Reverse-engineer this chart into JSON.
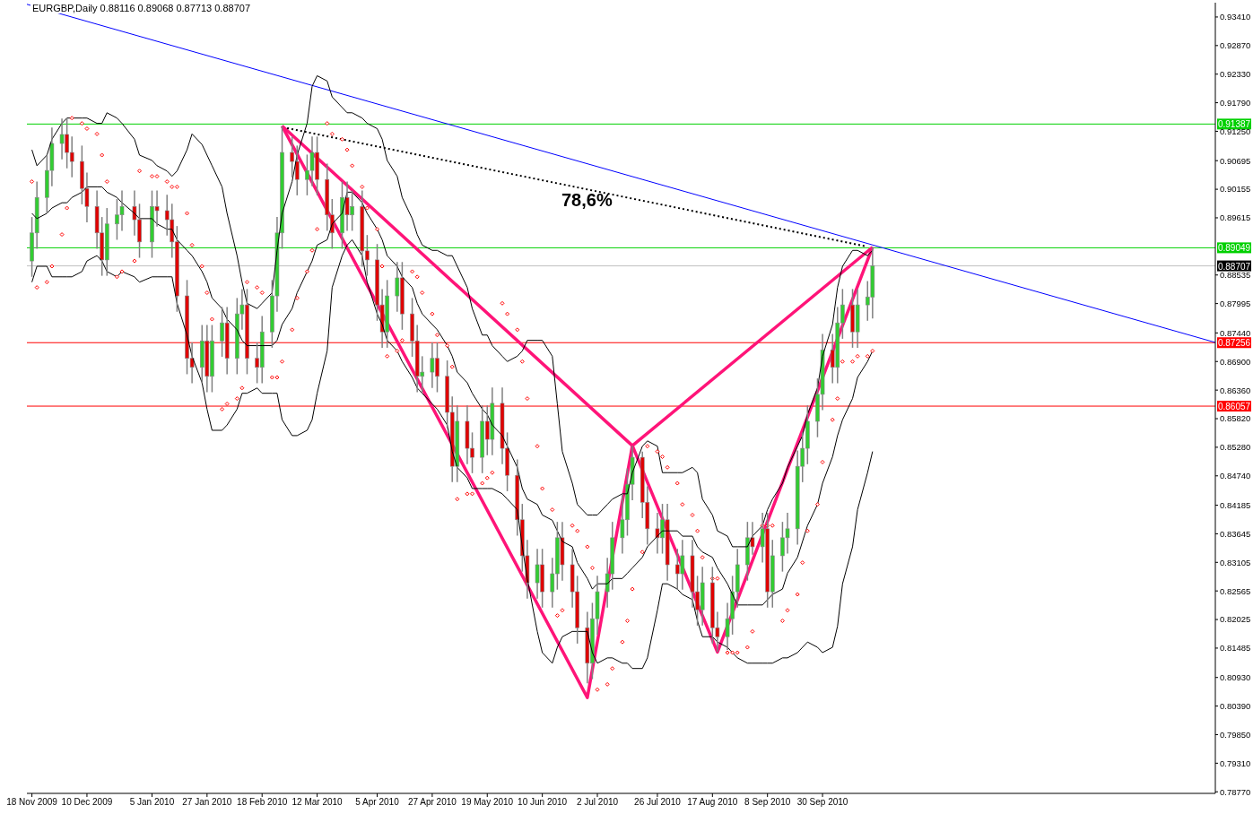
{
  "chart_data": {
    "type": "candlestick",
    "title": "EURGBP,Daily 0.88116 0.89068 0.87713 0.88707",
    "x": [
      "2009-11-18",
      "2009-11-20",
      "2009-11-24",
      "2009-11-26",
      "2009-11-30",
      "2009-12-02",
      "2009-12-04",
      "2009-12-08",
      "2009-12-10",
      "2009-12-14",
      "2009-12-16",
      "2009-12-18",
      "2009-12-22",
      "2009-12-24",
      "2009-12-29",
      "2009-12-31",
      "2010-01-05",
      "2010-01-07",
      "2010-01-11",
      "2010-01-13",
      "2010-01-15",
      "2010-01-19",
      "2010-01-21",
      "2010-01-25",
      "2010-01-27",
      "2010-01-29",
      "2010-02-02",
      "2010-02-04",
      "2010-02-08",
      "2010-02-10",
      "2010-02-12",
      "2010-02-16",
      "2010-02-18",
      "2010-02-22",
      "2010-02-24",
      "2010-02-26",
      "2010-03-02",
      "2010-03-04",
      "2010-03-08",
      "2010-03-10",
      "2010-03-12",
      "2010-03-16",
      "2010-03-18",
      "2010-03-22",
      "2010-03-24",
      "2010-03-26",
      "2010-03-30",
      "2010-04-01",
      "2010-04-05",
      "2010-04-07",
      "2010-04-09",
      "2010-04-13",
      "2010-04-15",
      "2010-04-19",
      "2010-04-21",
      "2010-04-23",
      "2010-04-27",
      "2010-04-29",
      "2010-05-03",
      "2010-05-05",
      "2010-05-07",
      "2010-05-11",
      "2010-05-13",
      "2010-05-17",
      "2010-05-19",
      "2010-05-21",
      "2010-05-25",
      "2010-05-27",
      "2010-05-31",
      "2010-06-02",
      "2010-06-04",
      "2010-06-08",
      "2010-06-10",
      "2010-06-14",
      "2010-06-16",
      "2010-06-18",
      "2010-06-22",
      "2010-06-24",
      "2010-06-28",
      "2010-06-30",
      "2010-07-02",
      "2010-07-06",
      "2010-07-08",
      "2010-07-12",
      "2010-07-14",
      "2010-07-16",
      "2010-07-20",
      "2010-07-22",
      "2010-07-26",
      "2010-07-28",
      "2010-07-30",
      "2010-08-03",
      "2010-08-05",
      "2010-08-09",
      "2010-08-11",
      "2010-08-13",
      "2010-08-17",
      "2010-08-19",
      "2010-08-23",
      "2010-08-25",
      "2010-08-27",
      "2010-08-31",
      "2010-09-02",
      "2010-09-06",
      "2010-09-08",
      "2010-09-10",
      "2010-09-14",
      "2010-09-16",
      "2010-09-20",
      "2010-09-22",
      "2010-09-24",
      "2010-09-28",
      "2010-09-30",
      "2010-10-04",
      "2010-10-06",
      "2010-10-08",
      "2010-10-12",
      "2010-10-14",
      "2010-10-18",
      "2010-10-20"
    ],
    "ohlc": [
      [
        0.888,
        0.8963,
        0.885,
        0.8933
      ],
      [
        0.8933,
        0.903,
        0.8903,
        0.9
      ],
      [
        0.9,
        0.9081,
        0.897,
        0.9051
      ],
      [
        0.9051,
        0.9132,
        0.9021,
        0.9102
      ],
      [
        0.9102,
        0.9149,
        0.9072,
        0.9119
      ],
      [
        0.9119,
        0.9149,
        0.9055,
        0.9085
      ],
      [
        0.9085,
        0.9115,
        0.9038,
        0.9068
      ],
      [
        0.9068,
        0.9098,
        0.8987,
        0.9017
      ],
      [
        0.9017,
        0.9047,
        0.8953,
        0.8983
      ],
      [
        0.8983,
        0.9013,
        0.8903,
        0.8933
      ],
      [
        0.8933,
        0.8963,
        0.8852,
        0.8882
      ],
      [
        0.8882,
        0.898,
        0.8852,
        0.895
      ],
      [
        0.895,
        0.8997,
        0.892,
        0.8967
      ],
      [
        0.8967,
        0.9013,
        0.8937,
        0.8983
      ],
      [
        0.8983,
        0.9013,
        0.8928,
        0.8958
      ],
      [
        0.8958,
        0.8988,
        0.8886,
        0.8916
      ],
      [
        0.8916,
        0.9013,
        0.8886,
        0.8983
      ],
      [
        0.8983,
        0.9013,
        0.8945,
        0.8975
      ],
      [
        0.8975,
        0.9005,
        0.8928,
        0.8958
      ],
      [
        0.8958,
        0.8988,
        0.8886,
        0.8916
      ],
      [
        0.8916,
        0.8946,
        0.8784,
        0.8814
      ],
      [
        0.8814,
        0.8844,
        0.8666,
        0.8696
      ],
      [
        0.8696,
        0.8726,
        0.8649,
        0.8679
      ],
      [
        0.8679,
        0.8759,
        0.8649,
        0.8729
      ],
      [
        0.8729,
        0.8759,
        0.8632,
        0.8662
      ],
      [
        0.8662,
        0.8759,
        0.8632,
        0.8729
      ],
      [
        0.8729,
        0.8793,
        0.8699,
        0.8763
      ],
      [
        0.8763,
        0.8793,
        0.8666,
        0.8696
      ],
      [
        0.8696,
        0.881,
        0.8666,
        0.878
      ],
      [
        0.878,
        0.8827,
        0.875,
        0.8797
      ],
      [
        0.8797,
        0.8827,
        0.8666,
        0.8696
      ],
      [
        0.8696,
        0.8726,
        0.8649,
        0.8679
      ],
      [
        0.8679,
        0.8776,
        0.8649,
        0.8746
      ],
      [
        0.8746,
        0.8844,
        0.8716,
        0.8814
      ],
      [
        0.8814,
        0.8963,
        0.8784,
        0.8933
      ],
      [
        0.8933,
        0.9135,
        0.8903,
        0.9085
      ],
      [
        0.9085,
        0.9115,
        0.9038,
        0.9068
      ],
      [
        0.9068,
        0.9098,
        0.9004,
        0.9034
      ],
      [
        0.9034,
        0.9081,
        0.9004,
        0.9051
      ],
      [
        0.9051,
        0.9115,
        0.9021,
        0.9085
      ],
      [
        0.9085,
        0.9115,
        0.9004,
        0.9034
      ],
      [
        0.9034,
        0.9064,
        0.8937,
        0.8967
      ],
      [
        0.8967,
        0.8997,
        0.8903,
        0.8933
      ],
      [
        0.8933,
        0.903,
        0.8903,
        0.9
      ],
      [
        0.9,
        0.903,
        0.8937,
        0.8967
      ],
      [
        0.8967,
        0.9013,
        0.8937,
        0.8983
      ],
      [
        0.8983,
        0.9013,
        0.8869,
        0.8899
      ],
      [
        0.8899,
        0.8929,
        0.8852,
        0.8882
      ],
      [
        0.8882,
        0.8912,
        0.8767,
        0.8797
      ],
      [
        0.8797,
        0.8827,
        0.8716,
        0.8746
      ],
      [
        0.8746,
        0.8844,
        0.8716,
        0.8814
      ],
      [
        0.8814,
        0.8878,
        0.8784,
        0.8848
      ],
      [
        0.8848,
        0.8878,
        0.875,
        0.878
      ],
      [
        0.878,
        0.881,
        0.8699,
        0.8729
      ],
      [
        0.8729,
        0.8759,
        0.8632,
        0.8662
      ],
      [
        0.8662,
        0.87,
        0.8632,
        0.867
      ],
      [
        0.867,
        0.8726,
        0.864,
        0.8696
      ],
      [
        0.8696,
        0.8726,
        0.8632,
        0.8662
      ],
      [
        0.8662,
        0.8692,
        0.8564,
        0.8594
      ],
      [
        0.8594,
        0.8624,
        0.8462,
        0.8492
      ],
      [
        0.8492,
        0.8607,
        0.8462,
        0.8577
      ],
      [
        0.8577,
        0.8607,
        0.8496,
        0.8526
      ],
      [
        0.8526,
        0.8556,
        0.8479,
        0.8509
      ],
      [
        0.8509,
        0.8607,
        0.8479,
        0.8577
      ],
      [
        0.8577,
        0.8607,
        0.8513,
        0.8543
      ],
      [
        0.8543,
        0.8641,
        0.8513,
        0.8611
      ],
      [
        0.8611,
        0.8641,
        0.8496,
        0.8526
      ],
      [
        0.8526,
        0.8556,
        0.8445,
        0.8475
      ],
      [
        0.8475,
        0.8505,
        0.8361,
        0.8391
      ],
      [
        0.8391,
        0.8421,
        0.8293,
        0.8323
      ],
      [
        0.8323,
        0.8353,
        0.8242,
        0.8272
      ],
      [
        0.8272,
        0.8336,
        0.8242,
        0.8306
      ],
      [
        0.8306,
        0.8336,
        0.8225,
        0.8255
      ],
      [
        0.8255,
        0.8319,
        0.8225,
        0.8289
      ],
      [
        0.8289,
        0.8387,
        0.8259,
        0.8357
      ],
      [
        0.8357,
        0.8387,
        0.8276,
        0.8306
      ],
      [
        0.8306,
        0.8336,
        0.8225,
        0.8255
      ],
      [
        0.8255,
        0.8285,
        0.8157,
        0.8187
      ],
      [
        0.8187,
        0.8217,
        0.8082,
        0.812
      ],
      [
        0.812,
        0.8234,
        0.809,
        0.8204
      ],
      [
        0.8204,
        0.8285,
        0.8174,
        0.8255
      ],
      [
        0.8255,
        0.8319,
        0.8225,
        0.8289
      ],
      [
        0.8289,
        0.8387,
        0.8259,
        0.8357
      ],
      [
        0.8357,
        0.844,
        0.8327,
        0.8391
      ],
      [
        0.8391,
        0.8488,
        0.8361,
        0.8458
      ],
      [
        0.8458,
        0.8531,
        0.8428,
        0.8509
      ],
      [
        0.8509,
        0.852,
        0.8394,
        0.8424
      ],
      [
        0.8424,
        0.8454,
        0.8344,
        0.8374
      ],
      [
        0.8374,
        0.8404,
        0.8327,
        0.8357
      ],
      [
        0.8357,
        0.8421,
        0.8327,
        0.8391
      ],
      [
        0.8391,
        0.8421,
        0.8276,
        0.8306
      ],
      [
        0.8306,
        0.8336,
        0.8259,
        0.8289
      ],
      [
        0.8289,
        0.8353,
        0.8259,
        0.8323
      ],
      [
        0.8323,
        0.8353,
        0.8225,
        0.8255
      ],
      [
        0.8255,
        0.8285,
        0.8191,
        0.8221
      ],
      [
        0.8221,
        0.8302,
        0.8191,
        0.8272
      ],
      [
        0.8272,
        0.8302,
        0.8157,
        0.8187
      ],
      [
        0.8187,
        0.8217,
        0.8141,
        0.817
      ],
      [
        0.817,
        0.8234,
        0.8145,
        0.8204
      ],
      [
        0.8204,
        0.8285,
        0.8174,
        0.8255
      ],
      [
        0.8255,
        0.8336,
        0.8225,
        0.8306
      ],
      [
        0.8306,
        0.8387,
        0.8276,
        0.8357
      ],
      [
        0.8357,
        0.8387,
        0.8325,
        0.834
      ],
      [
        0.834,
        0.8404,
        0.831,
        0.8374
      ],
      [
        0.8374,
        0.8404,
        0.8225,
        0.8255
      ],
      [
        0.8255,
        0.8353,
        0.8225,
        0.8323
      ],
      [
        0.8323,
        0.8387,
        0.8293,
        0.8357
      ],
      [
        0.8357,
        0.8404,
        0.8327,
        0.8374
      ],
      [
        0.8374,
        0.8522,
        0.8344,
        0.8492
      ],
      [
        0.8492,
        0.8556,
        0.8462,
        0.8526
      ],
      [
        0.8526,
        0.8607,
        0.8496,
        0.8577
      ],
      [
        0.8577,
        0.8658,
        0.8547,
        0.8628
      ],
      [
        0.8628,
        0.8742,
        0.8598,
        0.8712
      ],
      [
        0.8712,
        0.8742,
        0.8649,
        0.8679
      ],
      [
        0.8679,
        0.8793,
        0.8649,
        0.8763
      ],
      [
        0.8763,
        0.8827,
        0.8733,
        0.8797
      ],
      [
        0.8797,
        0.8827,
        0.8716,
        0.8746
      ],
      [
        0.8746,
        0.8827,
        0.8716,
        0.8797
      ],
      [
        0.8797,
        0.8842,
        0.8767,
        0.8812
      ],
      [
        0.88116,
        0.89068,
        0.87713,
        0.88707
      ]
    ],
    "series": [
      {
        "type": "line",
        "color": "#000000",
        "values": [
          0.909,
          0.906,
          0.908,
          0.911,
          0.914,
          0.915,
          0.915,
          0.915,
          0.915,
          0.914,
          0.914,
          0.916,
          0.915,
          0.914,
          0.911,
          0.908,
          0.907,
          0.906,
          0.905,
          0.904,
          0.905,
          0.909,
          0.912,
          0.91,
          0.908,
          0.906,
          0.902,
          0.897,
          0.889,
          0.884,
          0.88,
          0.879,
          0.88,
          0.882,
          0.89,
          0.897,
          0.903,
          0.908,
          0.914,
          0.921,
          0.923,
          0.922,
          0.919,
          0.917,
          0.916,
          0.916,
          0.915,
          0.914,
          0.913,
          0.911,
          0.907,
          0.904,
          0.9,
          0.896,
          0.893,
          0.891,
          0.89,
          0.89,
          0.889,
          0.889,
          0.887,
          0.883,
          0.879,
          0.874,
          0.874,
          0.872,
          0.87,
          0.869,
          0.87,
          0.871,
          0.873,
          0.873,
          0.873,
          0.87,
          0.861,
          0.852,
          0.846,
          0.842,
          0.84,
          0.84,
          0.84,
          0.842,
          0.843,
          0.844,
          0.844,
          0.848,
          0.853,
          0.854,
          0.853,
          0.848,
          0.848,
          0.848,
          0.848,
          0.849,
          0.848,
          0.843,
          0.84,
          0.837,
          0.836,
          0.834,
          0.834,
          0.834,
          0.836,
          0.838,
          0.841,
          0.843,
          0.846,
          0.849,
          0.853,
          0.855,
          0.859,
          0.864,
          0.87,
          0.876,
          0.883,
          0.887,
          0.89,
          0.89,
          0.889,
          0.89
        ]
      },
      {
        "type": "line",
        "color": "#000000",
        "values": [
          0.897,
          0.896,
          0.897,
          0.898,
          0.899,
          0.899,
          0.9,
          0.901,
          0.902,
          0.902,
          0.902,
          0.901,
          0.9,
          0.899,
          0.897,
          0.896,
          0.896,
          0.895,
          0.894,
          0.894,
          0.892,
          0.89,
          0.889,
          0.886,
          0.884,
          0.881,
          0.879,
          0.877,
          0.875,
          0.873,
          0.872,
          0.872,
          0.872,
          0.872,
          0.873,
          0.876,
          0.879,
          0.882,
          0.886,
          0.888,
          0.891,
          0.892,
          0.895,
          0.897,
          0.901,
          0.901,
          0.899,
          0.897,
          0.894,
          0.892,
          0.889,
          0.887,
          0.885,
          0.883,
          0.88,
          0.878,
          0.876,
          0.875,
          0.872,
          0.87,
          0.867,
          0.865,
          0.863,
          0.86,
          0.859,
          0.857,
          0.855,
          0.853,
          0.849,
          0.845,
          0.843,
          0.842,
          0.84,
          0.839,
          0.837,
          0.835,
          0.834,
          0.831,
          0.828,
          0.826,
          0.827,
          0.827,
          0.828,
          0.828,
          0.829,
          0.83,
          0.832,
          0.834,
          0.836,
          0.837,
          0.837,
          0.837,
          0.836,
          0.836,
          0.834,
          0.833,
          0.832,
          0.83,
          0.827,
          0.825,
          0.823,
          0.823,
          0.823,
          0.823,
          0.824,
          0.825,
          0.826,
          0.829,
          0.832,
          0.835,
          0.838,
          0.842,
          0.846,
          0.851,
          0.855,
          0.858,
          0.862,
          0.866,
          0.869,
          0.871
        ]
      },
      {
        "type": "line",
        "color": "#000000",
        "values": [
          0.884,
          0.887,
          0.887,
          0.885,
          0.885,
          0.885,
          0.885,
          0.886,
          0.888,
          0.889,
          0.888,
          0.886,
          0.885,
          0.886,
          0.885,
          0.884,
          0.885,
          0.885,
          0.885,
          0.885,
          0.88,
          0.874,
          0.87,
          0.865,
          0.86,
          0.856,
          0.856,
          0.857,
          0.86,
          0.863,
          0.863,
          0.864,
          0.863,
          0.863,
          0.863,
          0.858,
          0.855,
          0.855,
          0.856,
          0.858,
          0.863,
          0.871,
          0.883,
          0.889,
          0.891,
          0.892,
          0.889,
          0.884,
          0.878,
          0.876,
          0.873,
          0.871,
          0.869,
          0.866,
          0.864,
          0.863,
          0.861,
          0.86,
          0.857,
          0.852,
          0.849,
          0.847,
          0.845,
          0.845,
          0.845,
          0.845,
          0.844,
          0.843,
          0.841,
          0.834,
          0.828,
          0.818,
          0.814,
          0.812,
          0.815,
          0.817,
          0.818,
          0.818,
          0.818,
          0.814,
          0.812,
          0.813,
          0.813,
          0.812,
          0.812,
          0.811,
          0.811,
          0.813,
          0.822,
          0.827,
          0.827,
          0.826,
          0.825,
          0.824,
          0.82,
          0.817,
          0.817,
          0.816,
          0.815,
          0.814,
          0.813,
          0.812,
          0.812,
          0.812,
          0.812,
          0.812,
          0.813,
          0.813,
          0.814,
          0.815,
          0.816,
          0.815,
          0.814,
          0.815,
          0.819,
          0.827,
          0.834,
          0.841,
          0.848,
          0.852
        ]
      },
      {
        "type": "scatter",
        "color": "#ff0000",
        "marker": "diamond",
        "values": [
          0.903,
          0.883,
          0.884,
          0.887,
          0.893,
          0.898,
          0.915,
          0.914,
          0.913,
          0.912,
          0.908,
          0.903,
          0.885,
          0.886,
          0.888,
          0.905,
          0.904,
          0.904,
          0.903,
          0.902,
          0.902,
          0.897,
          0.891,
          0.887,
          0.882,
          0.877,
          0.86,
          0.861,
          0.862,
          0.864,
          0.884,
          0.883,
          0.882,
          0.866,
          0.866,
          0.869,
          0.875,
          0.881,
          0.886,
          0.89,
          0.894,
          0.914,
          0.912,
          0.911,
          0.909,
          0.906,
          0.902,
          0.898,
          0.894,
          0.887,
          0.87,
          0.871,
          0.873,
          0.886,
          0.885,
          0.882,
          0.878,
          0.874,
          0.872,
          0.868,
          0.843,
          0.844,
          0.844,
          0.846,
          0.847,
          0.848,
          0.88,
          0.878,
          0.875,
          0.869,
          0.862,
          0.853,
          0.845,
          0.841,
          0.821,
          0.822,
          0.838,
          0.837,
          0.834,
          0.83,
          0.807,
          0.808,
          0.811,
          0.816,
          0.82,
          0.826,
          0.833,
          0.853,
          0.852,
          0.851,
          0.849,
          0.846,
          0.842,
          0.84,
          0.837,
          0.832,
          0.828,
          0.828,
          0.814,
          0.814,
          0.814,
          0.815,
          0.818,
          0.838,
          0.838,
          0.838,
          0.82,
          0.822,
          0.825,
          0.831,
          0.837,
          0.842,
          0.85,
          0.858,
          0.862,
          0.869,
          0.869,
          0.87,
          0.87,
          0.871
        ]
      },
      {
        "type": "line",
        "color": "#0000ff",
        "x": [
          "2009-11-16",
          "2011-03-06"
        ],
        "values": [
          0.9365,
          0.8726
        ]
      },
      {
        "type": "line",
        "color": "#ff1478",
        "x": [
          "2010-02-26",
          "2010-06-28",
          "2010-07-16",
          "2010-08-19",
          "2010-10-20"
        ],
        "values": [
          0.9135,
          0.8055,
          0.8531,
          0.8141,
          0.8906
        ]
      },
      {
        "type": "line",
        "color": "#ff1478",
        "x": [
          "2010-02-26",
          "2010-07-16",
          "2010-10-20"
        ],
        "values": [
          0.9135,
          0.8531,
          0.8906
        ]
      },
      {
        "type": "line",
        "color": "#000000",
        "line_style": "dotted",
        "x": [
          "2010-02-28",
          "2010-10-17"
        ],
        "values": [
          0.9131,
          0.8908
        ]
      }
    ],
    "xlim": [
      "2009-11-16",
      "2011-03-06"
    ],
    "xticks": [
      {
        "value": "2009-11-18",
        "label": "18 Nov 2009"
      },
      {
        "value": "2009-12-10",
        "label": "10 Dec 2009"
      },
      {
        "value": "2010-01-05",
        "label": "5 Jan 2010"
      },
      {
        "value": "2010-01-27",
        "label": "27 Jan 2010"
      },
      {
        "value": "2010-02-18",
        "label": "18 Feb 2010"
      },
      {
        "value": "2010-03-12",
        "label": "12 Mar 2010"
      },
      {
        "value": "2010-04-05",
        "label": "5 Apr 2010"
      },
      {
        "value": "2010-04-27",
        "label": "27 Apr 2010"
      },
      {
        "value": "2010-05-19",
        "label": "19 May 2010"
      },
      {
        "value": "2010-06-10",
        "label": "10 Jun 2010"
      },
      {
        "value": "2010-07-02",
        "label": "2 Jul 2010"
      },
      {
        "value": "2010-07-26",
        "label": "26 Jul 2010"
      },
      {
        "value": "2010-08-17",
        "label": "17 Aug 2010"
      },
      {
        "value": "2010-09-08",
        "label": "8 Sep 2010"
      },
      {
        "value": "2010-09-30",
        "label": "30 Sep 2010"
      }
    ],
    "ylim": [
      0.7874,
      0.9368
    ],
    "yticks": [
      {
        "value": 0.9341,
        "label": "0.93410"
      },
      {
        "value": 0.9287,
        "label": "0.92870"
      },
      {
        "value": 0.9233,
        "label": "0.92330"
      },
      {
        "value": 0.9179,
        "label": "0.91790"
      },
      {
        "value": 0.9125,
        "label": "0.91250"
      },
      0.90695,
      0.90155,
      0.89615,
      0.88535,
      0.87995,
      {
        "value": 0.8744,
        "label": "0.87440"
      },
      {
        "value": 0.869,
        "label": "0.86900"
      },
      {
        "value": 0.8636,
        "label": "0.86360"
      },
      {
        "value": 0.8582,
        "label": "0.85820"
      },
      {
        "value": 0.8528,
        "label": "0.85280"
      },
      {
        "value": 0.8474,
        "label": "0.84740"
      },
      0.84185,
      0.83645,
      0.83105,
      0.82565,
      0.82025,
      0.81485,
      {
        "value": 0.8093,
        "label": "0.80930"
      },
      {
        "value": 0.8039,
        "label": "0.80390"
      },
      {
        "value": 0.7985,
        "label": "0.79850"
      },
      {
        "value": 0.7931,
        "label": "0.79310"
      },
      {
        "value": 0.7877,
        "label": "0.78770"
      }
    ],
    "ref_lines": [
      {
        "axis": "y",
        "value": 0.91387,
        "label": "0.91387",
        "color": "#00d000"
      },
      {
        "axis": "y",
        "value": 0.89049,
        "label": "0.89049",
        "color": "#00d000"
      },
      {
        "axis": "y",
        "value": 0.88707,
        "label": "0.88707",
        "color": "#c0c0c0"
      },
      {
        "axis": "y",
        "value": 0.87256,
        "label": "0.87256",
        "color": "#ff0000"
      },
      {
        "axis": "y",
        "value": 0.86057,
        "label": "0.86057",
        "color": "#ff0000"
      }
    ],
    "annotations": [
      "78,6%"
    ],
    "marker": "none",
    "line_style": "solid",
    "grid": false
  }
}
